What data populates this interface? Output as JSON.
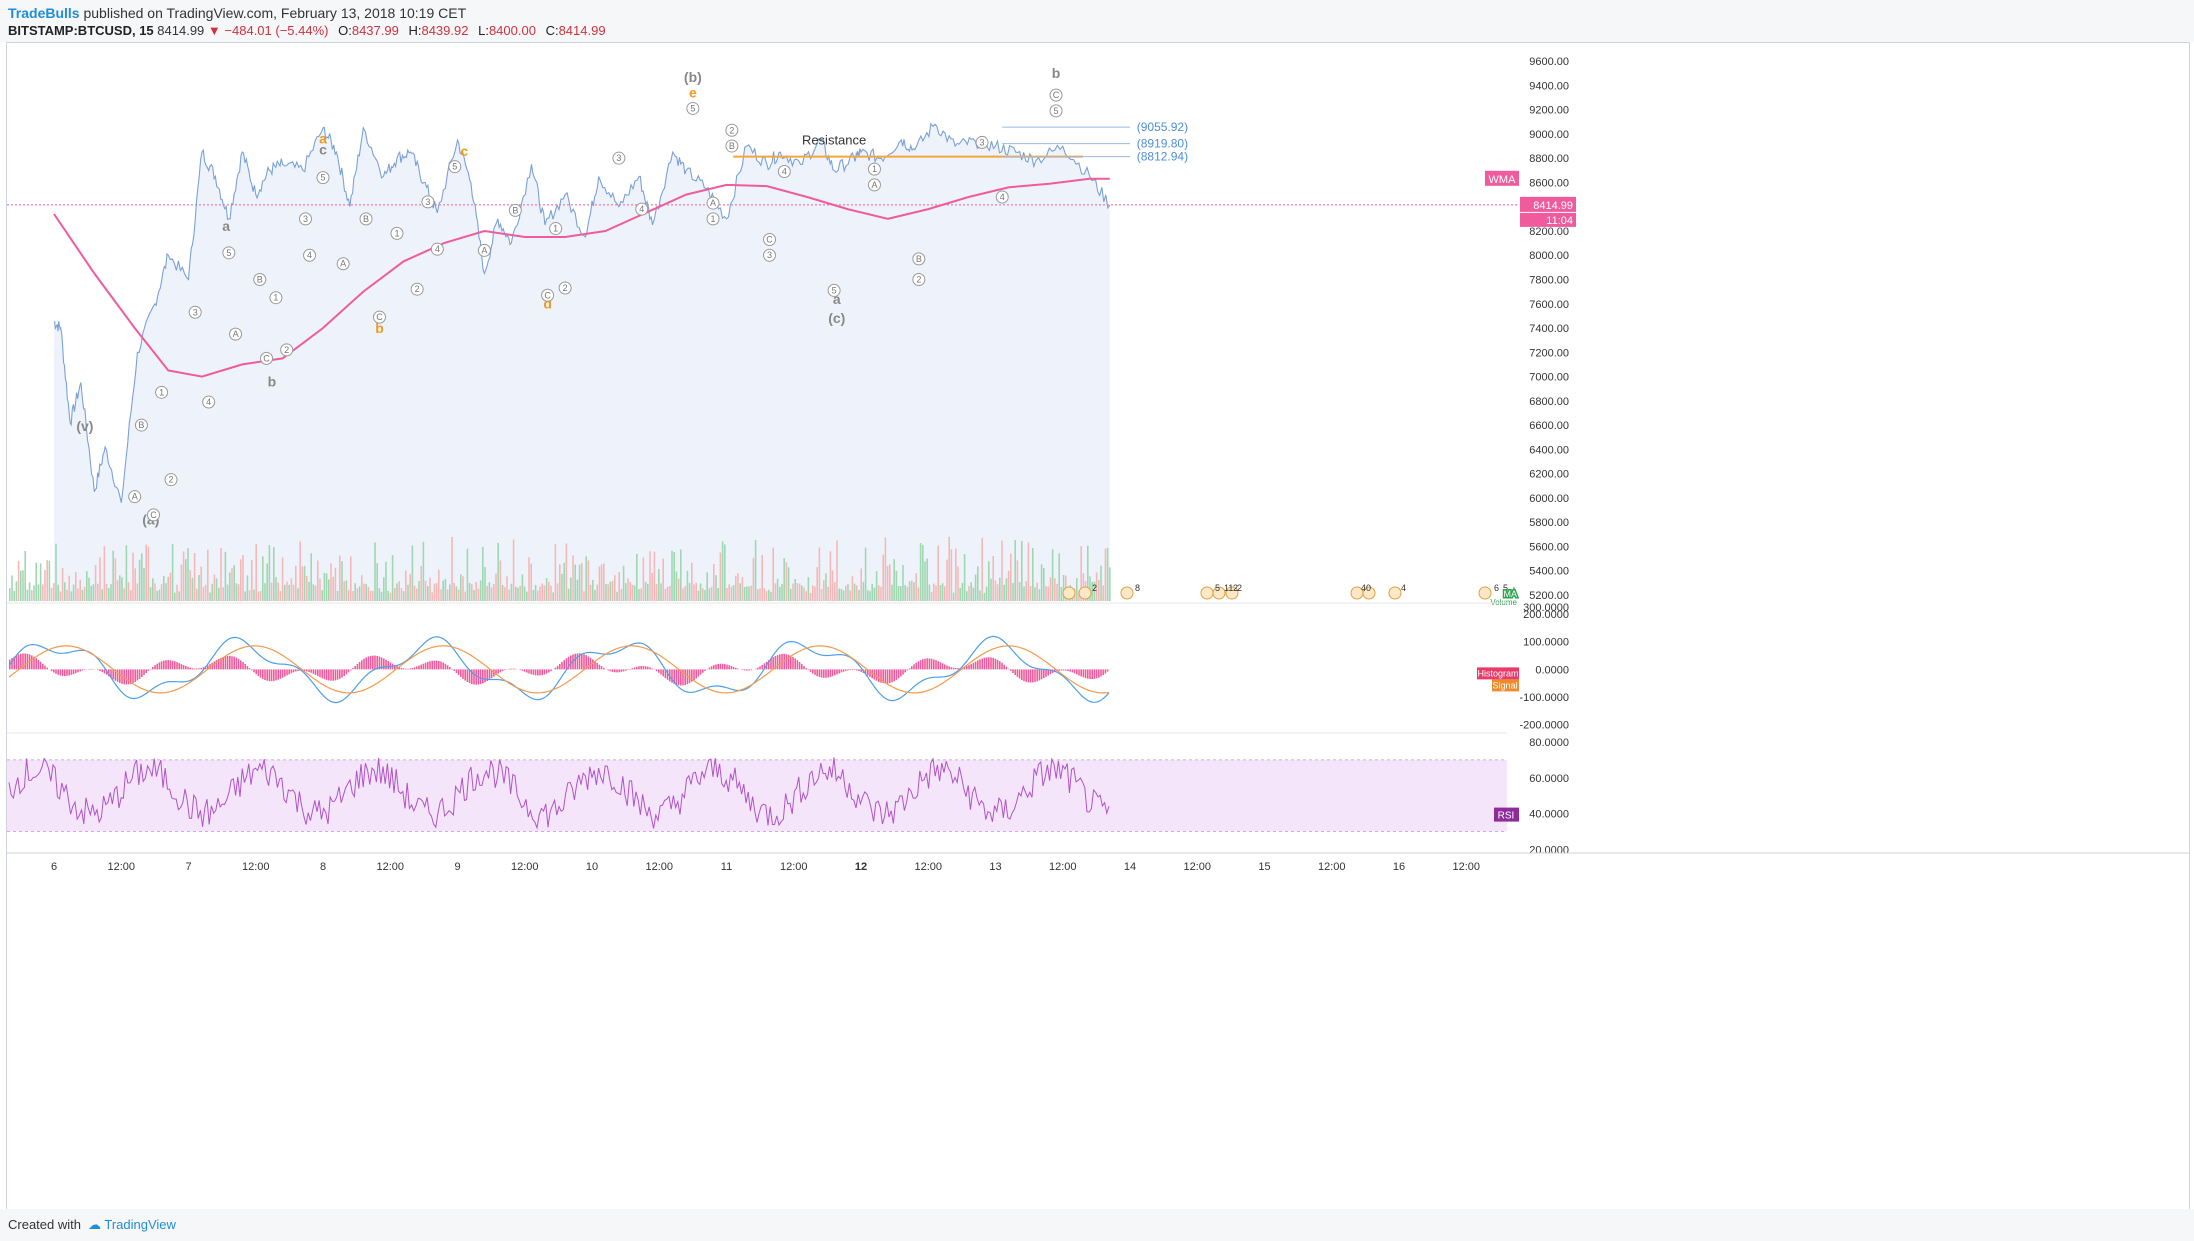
{
  "header": {
    "brand": "TradeBulls",
    "published": "published on TradingView.com, February 13, 2018 10:19 CET",
    "symbol": "BITSTAMP:BTCUSD, 15",
    "last": "8414.99",
    "arrow": "▼",
    "change": "−484.01 (−5.44%)",
    "open_label": "O:",
    "open": "8437.99",
    "high_label": "H:",
    "high": "8439.92",
    "low_label": "L:",
    "low": "8400.00",
    "close_label": "C:",
    "close": "8414.99"
  },
  "footer": {
    "created": "Created with",
    "logo": "TradingView"
  },
  "colors": {
    "price_line": "#7aa1d8",
    "area_fill": "#eef3fb",
    "wma": "#ef5b9c",
    "resistance": "#f5a53a",
    "fib": "#9db8e0",
    "wave_orange": "#f39a1e",
    "wave_gray": "#888888",
    "last_price": "#ef5b9c",
    "volume_up": "#9fd8b0",
    "volume_down": "#f5b8b8",
    "macd_line": "#4f9fe8",
    "signal_line": "#f49a4c",
    "histogram": "#ef5b9c",
    "rsi_line": "#b154c8",
    "rsi_band": "#f4e5fb"
  },
  "chart_data": {
    "type": "line",
    "price_axis": {
      "ticks": [
        "9600.00",
        "9400.00",
        "9200.00",
        "9000.00",
        "8800.00",
        "8600.00",
        "8400.00",
        "8200.00",
        "8000.00",
        "7800.00",
        "7600.00",
        "7400.00",
        "7200.00",
        "7000.00",
        "6800.00",
        "6600.00",
        "6400.00",
        "6200.00",
        "6000.00",
        "5800.00",
        "5600.00",
        "5400.00",
        "5200.00"
      ],
      "range": [
        5150,
        9700
      ]
    },
    "time_axis": {
      "ticks": [
        "6",
        "12:00",
        "7",
        "12:00",
        "8",
        "12:00",
        "9",
        "12:00",
        "10",
        "12:00",
        "11",
        "12:00",
        "12",
        "12:00",
        "13",
        "12:00",
        "14",
        "12:00",
        "15",
        "12:00",
        "16",
        "12:00"
      ],
      "bold": [
        "12"
      ]
    },
    "series": [
      {
        "name": "BTCUSD",
        "x": [
          0.0,
          0.05,
          0.12,
          0.2,
          0.3,
          0.38,
          0.5,
          0.62,
          0.75,
          0.85,
          1.0,
          1.1,
          1.2,
          1.3,
          1.4,
          1.5,
          1.6,
          1.7,
          1.85,
          2.0,
          2.1,
          2.2,
          2.3,
          2.45,
          2.55,
          2.65,
          2.75,
          2.85,
          3.0,
          3.1,
          3.2,
          3.3,
          3.4,
          3.55,
          3.65,
          3.8,
          3.95,
          4.05,
          4.2,
          4.35,
          4.45,
          4.6,
          4.7,
          4.85,
          5.0,
          5.15,
          5.3,
          5.4,
          5.55,
          5.7,
          5.8,
          5.95,
          6.0,
          6.15,
          6.3,
          6.4,
          6.55,
          6.7,
          6.85,
          7.0,
          7.15,
          7.3,
          7.5,
          7.7,
          7.85
        ],
        "values": [
          7450,
          7400,
          6620,
          6950,
          6050,
          6420,
          5960,
          7200,
          7600,
          8000,
          7800,
          8850,
          8650,
          8300,
          8850,
          8500,
          8700,
          8750,
          8700,
          9050,
          8850,
          8400,
          9050,
          8650,
          8800,
          8850,
          8600,
          8350,
          8950,
          8600,
          7850,
          8300,
          8100,
          8750,
          8250,
          8500,
          8150,
          8650,
          8400,
          8650,
          8250,
          8850,
          8700,
          8550,
          8300,
          8900,
          8750,
          8850,
          8750,
          8950,
          8700,
          8800,
          8850,
          8800,
          8950,
          8870,
          9080,
          8900,
          8940,
          8900,
          8850,
          8780,
          8900,
          8650,
          8415
        ]
      },
      {
        "name": "WMA",
        "x": [
          0,
          0.3,
          0.6,
          0.85,
          1.1,
          1.4,
          1.7,
          2.0,
          2.3,
          2.6,
          2.9,
          3.2,
          3.5,
          3.8,
          4.1,
          4.4,
          4.7,
          5.0,
          5.3,
          5.6,
          5.9,
          6.2,
          6.5,
          6.8,
          7.1,
          7.4,
          7.7,
          7.85
        ],
        "values": [
          8340,
          7850,
          7400,
          7050,
          7000,
          7100,
          7150,
          7400,
          7700,
          7950,
          8100,
          8200,
          8150,
          8150,
          8200,
          8350,
          8500,
          8580,
          8570,
          8480,
          8380,
          8300,
          8380,
          8480,
          8560,
          8590,
          8630,
          8630
        ]
      }
    ],
    "resistance": {
      "label": "Resistance",
      "value": 8812.94
    },
    "fib_levels": [
      "(9055.92)",
      "(8919.80)",
      "(8812.94)"
    ],
    "fib_values": [
      9055.92,
      8919.8,
      8812.94
    ],
    "wma_label": "WMA",
    "last_price_label": "8414.99",
    "countdown": "11:04",
    "wave_labels": [
      {
        "text": "(v)",
        "x": 0.23,
        "y": 6550,
        "color": "gray"
      },
      {
        "text": "(a)",
        "x": 0.72,
        "y": 5780,
        "color": "gray"
      },
      {
        "text": "a",
        "x": 1.28,
        "y": 8200,
        "color": "gray"
      },
      {
        "text": "b",
        "x": 1.62,
        "y": 6920,
        "color": "gray"
      },
      {
        "text": "a",
        "x": 2.0,
        "y": 8920,
        "color": "orange"
      },
      {
        "text": "c",
        "x": 2.0,
        "y": 8830,
        "color": "gray"
      },
      {
        "text": "b",
        "x": 2.42,
        "y": 7360,
        "color": "orange"
      },
      {
        "text": "c",
        "x": 3.05,
        "y": 8820,
        "color": "orange"
      },
      {
        "text": "d",
        "x": 3.67,
        "y": 7560,
        "color": "orange"
      },
      {
        "text": "(b)",
        "x": 4.75,
        "y": 9430,
        "color": "gray"
      },
      {
        "text": "e",
        "x": 4.75,
        "y": 9300,
        "color": "orange"
      },
      {
        "text": "a",
        "x": 5.82,
        "y": 7600,
        "color": "gray"
      },
      {
        "text": "(c)",
        "x": 5.82,
        "y": 7440,
        "color": "gray"
      },
      {
        "text": "b",
        "x": 7.45,
        "y": 9460,
        "color": "gray"
      }
    ],
    "circle_labels": [
      {
        "t": "B",
        "x": 0.65,
        "y": 6600
      },
      {
        "t": "A",
        "x": 0.6,
        "y": 6010
      },
      {
        "t": "C",
        "x": 0.74,
        "y": 5860
      },
      {
        "t": "1",
        "x": 0.8,
        "y": 6870
      },
      {
        "t": "2",
        "x": 0.87,
        "y": 6150
      },
      {
        "t": "3",
        "x": 1.05,
        "y": 7530
      },
      {
        "t": "4",
        "x": 1.15,
        "y": 6790
      },
      {
        "t": "5",
        "x": 1.3,
        "y": 8020
      },
      {
        "t": "A",
        "x": 1.35,
        "y": 7350
      },
      {
        "t": "B",
        "x": 1.53,
        "y": 7800
      },
      {
        "t": "1",
        "x": 1.65,
        "y": 7650
      },
      {
        "t": "C",
        "x": 1.58,
        "y": 7150
      },
      {
        "t": "2",
        "x": 1.73,
        "y": 7220
      },
      {
        "t": "3",
        "x": 1.87,
        "y": 8300
      },
      {
        "t": "4",
        "x": 1.9,
        "y": 8000
      },
      {
        "t": "5",
        "x": 2.0,
        "y": 8640
      },
      {
        "t": "A",
        "x": 2.15,
        "y": 7930
      },
      {
        "t": "B",
        "x": 2.32,
        "y": 8300
      },
      {
        "t": "C",
        "x": 2.42,
        "y": 7490
      },
      {
        "t": "1",
        "x": 2.55,
        "y": 8180
      },
      {
        "t": "2",
        "x": 2.7,
        "y": 7720
      },
      {
        "t": "3",
        "x": 2.78,
        "y": 8440
      },
      {
        "t": "4",
        "x": 2.85,
        "y": 8050
      },
      {
        "t": "5",
        "x": 2.98,
        "y": 8730
      },
      {
        "t": "A",
        "x": 3.2,
        "y": 8040
      },
      {
        "t": "B",
        "x": 3.43,
        "y": 8370
      },
      {
        "t": "C",
        "x": 3.67,
        "y": 7670
      },
      {
        "t": "1",
        "x": 3.73,
        "y": 8220
      },
      {
        "t": "2",
        "x": 3.8,
        "y": 7730
      },
      {
        "t": "3",
        "x": 4.2,
        "y": 8800
      },
      {
        "t": "4",
        "x": 4.37,
        "y": 8380
      },
      {
        "t": "5",
        "x": 4.75,
        "y": 9210
      },
      {
        "t": "1",
        "x": 4.9,
        "y": 8300
      },
      {
        "t": "A",
        "x": 4.9,
        "y": 8430
      },
      {
        "t": "2",
        "x": 5.04,
        "y": 9030
      },
      {
        "t": "B",
        "x": 5.04,
        "y": 8900
      },
      {
        "t": "3",
        "x": 5.32,
        "y": 8000
      },
      {
        "t": "C",
        "x": 5.32,
        "y": 8130
      },
      {
        "t": "4",
        "x": 5.43,
        "y": 8690
      },
      {
        "t": "5",
        "x": 5.8,
        "y": 7710
      },
      {
        "t": "1",
        "x": 6.1,
        "y": 8710
      },
      {
        "t": "A",
        "x": 6.1,
        "y": 8580
      },
      {
        "t": "B",
        "x": 6.43,
        "y": 7970
      },
      {
        "t": "2",
        "x": 6.43,
        "y": 7800
      },
      {
        "t": "3",
        "x": 6.9,
        "y": 8930
      },
      {
        "t": "4",
        "x": 7.05,
        "y": 8480
      },
      {
        "t": "5",
        "x": 7.45,
        "y": 9190
      },
      {
        "t": "C",
        "x": 7.45,
        "y": 9320
      }
    ],
    "macd": {
      "axis": [
        "200.0000",
        "100.0000",
        "0.0000",
        "-100.0000",
        "-200.0000"
      ],
      "range": [
        -230,
        240
      ],
      "labels": [
        "Histogram",
        "Signal"
      ]
    },
    "rsi": {
      "axis": [
        "80.0000",
        "60.0000",
        "40.0000",
        "20.0000"
      ],
      "range": [
        18,
        85
      ],
      "band": [
        30,
        70
      ],
      "label": "RSI"
    },
    "volume_labels": [
      "MA",
      "Volume"
    ],
    "top_axis_value": "9600.00",
    "macd_top_value": "300.0000",
    "event_counts": [
      "2",
      "8",
      "5",
      "11",
      "2",
      "2",
      "40",
      "4",
      "6",
      "5"
    ]
  }
}
